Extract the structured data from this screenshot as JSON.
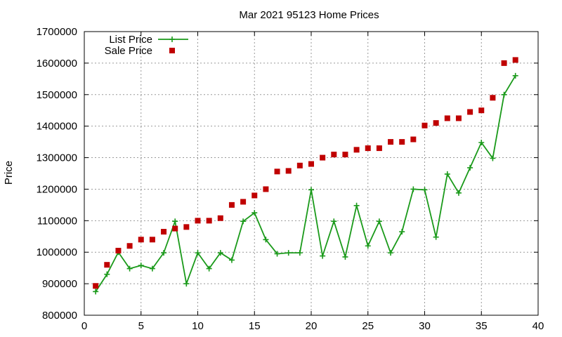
{
  "chart_data": {
    "type": "line",
    "title": "Mar 2021 95123 Home Prices",
    "xlabel": "",
    "ylabel": "Price",
    "xlim": [
      0,
      40
    ],
    "ylim": [
      800000,
      1700000
    ],
    "x_ticks": [
      "0",
      "5",
      "10",
      "15",
      "20",
      "25",
      "30",
      "35",
      "40"
    ],
    "y_ticks": [
      "800000",
      "900000",
      "1000000",
      "1100000",
      "1200000",
      "1300000",
      "1400000",
      "1500000",
      "1600000",
      "1700000"
    ],
    "grid": true,
    "legend_position": "top-left",
    "series": [
      {
        "name": "List Price",
        "style": "line-with-plus-markers",
        "color": "#1a9a1a",
        "x": [
          1,
          2,
          3,
          4,
          5,
          6,
          7,
          8,
          9,
          10,
          11,
          12,
          13,
          14,
          15,
          16,
          17,
          18,
          19,
          20,
          21,
          22,
          23,
          24,
          25,
          26,
          27,
          28,
          29,
          30,
          31,
          32,
          33,
          34,
          35,
          36,
          37,
          38
        ],
        "values": [
          875000,
          930000,
          1000000,
          948000,
          958000,
          948000,
          998000,
          1098000,
          900000,
          998000,
          948000,
          998000,
          975000,
          1098000,
          1125000,
          1040000,
          995000,
          998000,
          998000,
          1198000,
          988000,
          1098000,
          985000,
          1148000,
          1020000,
          1098000,
          998000,
          1065000,
          1200000,
          1198000,
          1048000,
          1248000,
          1188000,
          1268000,
          1348000,
          1298000,
          1500000,
          1560000
        ]
      },
      {
        "name": "Sale Price",
        "style": "square-markers",
        "color": "#c00000",
        "x": [
          1,
          2,
          3,
          4,
          5,
          6,
          7,
          8,
          9,
          10,
          11,
          12,
          13,
          14,
          15,
          16,
          17,
          18,
          19,
          20,
          21,
          22,
          23,
          24,
          25,
          26,
          27,
          28,
          29,
          30,
          31,
          32,
          33,
          34,
          35,
          36,
          37,
          38
        ],
        "values": [
          893000,
          960000,
          1005000,
          1020000,
          1040000,
          1040000,
          1065000,
          1075000,
          1080000,
          1100000,
          1100000,
          1108000,
          1150000,
          1160000,
          1180000,
          1200000,
          1256000,
          1258000,
          1275000,
          1280000,
          1300000,
          1310000,
          1310000,
          1325000,
          1330000,
          1330000,
          1350000,
          1350000,
          1358000,
          1402000,
          1410000,
          1425000,
          1425000,
          1445000,
          1450000,
          1490000,
          1600000,
          1610000
        ]
      }
    ]
  }
}
